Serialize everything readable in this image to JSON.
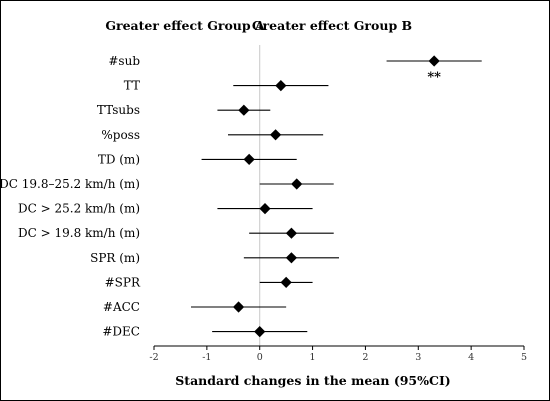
{
  "chart_data": {
    "type": "forest",
    "headers": {
      "left": "Greater effect Group A",
      "right": "Greater effect Group B"
    },
    "xlabel": "Standard changes in the mean (95%CI)",
    "xlim": [
      -2,
      5
    ],
    "xticks": [
      "-2",
      "-1",
      "0",
      "1",
      "2",
      "3",
      "4",
      "5"
    ],
    "reference_line": 0,
    "rows": [
      {
        "label": "#sub",
        "mean": 3.3,
        "lo": 2.4,
        "hi": 4.2,
        "annotation": "**"
      },
      {
        "label": "TT",
        "mean": 0.4,
        "lo": -0.5,
        "hi": 1.3
      },
      {
        "label": "TTsubs",
        "mean": -0.3,
        "lo": -0.8,
        "hi": 0.2
      },
      {
        "label": "%poss",
        "mean": 0.3,
        "lo": -0.6,
        "hi": 1.2
      },
      {
        "label": "TD (m)",
        "mean": -0.2,
        "lo": -1.1,
        "hi": 0.7
      },
      {
        "label": "DC 19.8–25.2 km/h (m)",
        "mean": 0.7,
        "lo": 0.0,
        "hi": 1.4
      },
      {
        "label": "DC > 25.2 km/h (m)",
        "mean": 0.1,
        "lo": -0.8,
        "hi": 1.0
      },
      {
        "label": "DC > 19.8 km/h (m)",
        "mean": 0.6,
        "lo": -0.2,
        "hi": 1.4
      },
      {
        "label": "SPR (m)",
        "mean": 0.6,
        "lo": -0.3,
        "hi": 1.5
      },
      {
        "label": "#SPR",
        "mean": 0.5,
        "lo": 0.0,
        "hi": 1.0
      },
      {
        "label": "#ACC",
        "mean": -0.4,
        "lo": -1.3,
        "hi": 0.5
      },
      {
        "label": "#DEC",
        "mean": 0.0,
        "lo": -0.9,
        "hi": 0.9
      }
    ]
  }
}
